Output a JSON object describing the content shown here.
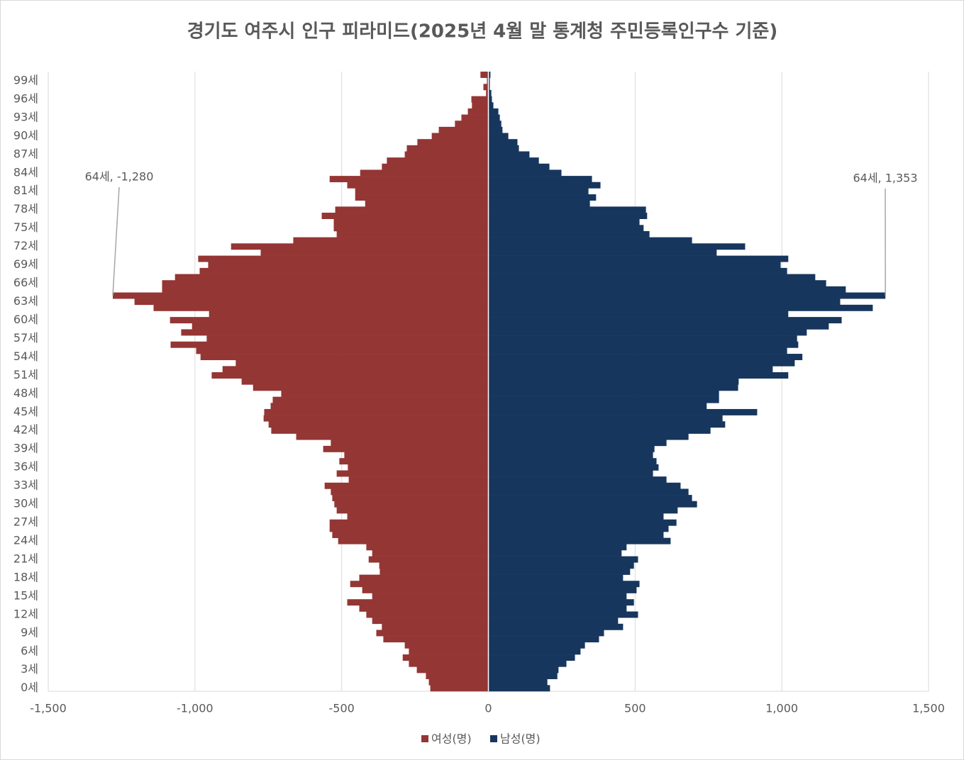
{
  "chart_data": {
    "type": "pyramid",
    "title": "경기도 여주시 인구 피라미드(2025년 4월 말 통계청 주민등록인구수 기준)",
    "categories": [
      "0세",
      null,
      null,
      "3세",
      null,
      null,
      "6세",
      null,
      null,
      "9세",
      null,
      null,
      "12세",
      null,
      null,
      "15세",
      null,
      null,
      "18세",
      null,
      null,
      "21세",
      null,
      null,
      "24세",
      null,
      null,
      "27세",
      null,
      null,
      "30세",
      null,
      null,
      "33세",
      null,
      null,
      "36세",
      null,
      null,
      "39세",
      null,
      null,
      "42세",
      null,
      null,
      "45세",
      null,
      null,
      "48세",
      null,
      null,
      "51세",
      null,
      null,
      "54세",
      null,
      null,
      "57세",
      null,
      null,
      "60세",
      null,
      null,
      "63세",
      null,
      null,
      "66세",
      null,
      null,
      "69세",
      null,
      null,
      "72세",
      null,
      null,
      "75세",
      null,
      null,
      "78세",
      null,
      null,
      "81세",
      null,
      null,
      "84세",
      null,
      null,
      "87세",
      null,
      null,
      "90세",
      null,
      null,
      "93세",
      null,
      null,
      "96세",
      null,
      null,
      "99세",
      null
    ],
    "series": [
      {
        "name": "여성(명)",
        "color": "#943634",
        "values": [
          -198,
          -203,
          -213,
          -244,
          -271,
          -292,
          -271,
          -285,
          -358,
          -382,
          -363,
          -396,
          -416,
          -440,
          -481,
          -396,
          -430,
          -471,
          -440,
          -370,
          -372,
          -408,
          -396,
          -416,
          -512,
          -532,
          -541,
          -541,
          -481,
          -517,
          -525,
          -532,
          -537,
          -558,
          -476,
          -517,
          -479,
          -508,
          -491,
          -563,
          -537,
          -655,
          -740,
          -749,
          -766,
          -764,
          -742,
          -735,
          -706,
          -802,
          -841,
          -943,
          -906,
          -861,
          -981,
          -996,
          -1083,
          -960,
          -1047,
          -1010,
          -1085,
          -952,
          -1141,
          -1206,
          -1280,
          -1112,
          -1112,
          -1068,
          -984,
          -955,
          -989,
          -776,
          -877,
          -665,
          -517,
          -527,
          -527,
          -568,
          -522,
          -420,
          -454,
          -454,
          -481,
          -541,
          -437,
          -363,
          -346,
          -285,
          -278,
          -242,
          -193,
          -169,
          -114,
          -92,
          -70,
          -56,
          -58,
          -8,
          -17,
          -5,
          -27
        ]
      },
      {
        "name": "남성(명)",
        "color": "#17365d",
        "values": [
          210,
          201,
          235,
          239,
          266,
          295,
          314,
          329,
          377,
          394,
          459,
          442,
          510,
          471,
          496,
          471,
          505,
          515,
          459,
          483,
          496,
          510,
          454,
          471,
          621,
          597,
          614,
          641,
          597,
          645,
          711,
          694,
          682,
          655,
          607,
          561,
          580,
          573,
          561,
          566,
          607,
          682,
          757,
          807,
          798,
          916,
          744,
          786,
          786,
          851,
          853,
          1022,
          969,
          1044,
          1070,
          1018,
          1056,
          1052,
          1085,
          1160,
          1204,
          1022,
          1310,
          1199,
          1353,
          1218,
          1151,
          1114,
          1018,
          996,
          1022,
          778,
          875,
          694,
          549,
          529,
          515,
          541,
          537,
          346,
          367,
          341,
          382,
          353,
          249,
          208,
          172,
          140,
          104,
          99,
          68,
          48,
          44,
          39,
          34,
          17,
          12,
          10,
          5,
          5,
          7
        ]
      }
    ],
    "xlim": [
      -1500,
      1500
    ],
    "xticks": [
      {
        "value": -1500,
        "label": "-1,500"
      },
      {
        "value": -1000,
        "label": "-1,000"
      },
      -500,
      0,
      500,
      {
        "value": 1000,
        "label": "1,000"
      },
      {
        "value": 1500,
        "label": "1,500"
      }
    ],
    "grid": true,
    "legend": "bottom",
    "annotations": [
      "64세, -1,280",
      "64세, 1,353"
    ]
  }
}
